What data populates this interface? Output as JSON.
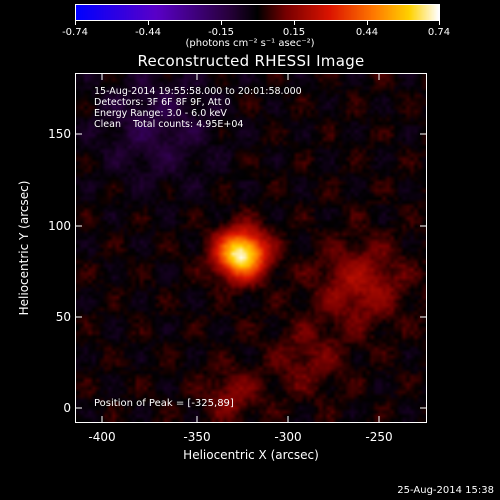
{
  "colorbar": {
    "tick_labels": [
      "-0.74",
      "-0.44",
      "-0.15",
      "0.15",
      "0.44",
      "0.74"
    ],
    "units": "(photons cm⁻² s⁻¹ asec⁻²)"
  },
  "chart_data": {
    "type": "heatmap",
    "title": "Reconstructed RHESSI Image",
    "xlabel": "Heliocentric X (arcsec)",
    "ylabel": "Heliocentric Y (arcsec)",
    "xlim": [
      -413,
      -227
    ],
    "ylim": [
      -5,
      190
    ],
    "xticks": [
      "-400",
      "-350",
      "-300",
      "-250"
    ],
    "yticks": [
      "0",
      "50",
      "100",
      "150"
    ],
    "clim": [
      -0.74,
      0.74
    ],
    "peak": {
      "x": -325,
      "y": 89,
      "value": 0.74
    },
    "sources": [
      {
        "x": -325,
        "y": 89,
        "value": 0.74
      },
      {
        "x": -262,
        "y": 72,
        "value": 0.18
      },
      {
        "x": -290,
        "y": 30,
        "value": 0.1
      },
      {
        "x": -330,
        "y": 10,
        "value": 0.13
      }
    ]
  },
  "info": {
    "line1": "15-Aug-2014 19:55:58.000 to 20:01:58.000",
    "line2": "Detectors: 3F 6F 8F 9F, Att 0",
    "line3": "Energy Range: 3.0 - 6.0 keV",
    "line4": "Clean    Total counts: 4.95E+04",
    "peak_text": "Position of Peak = [-325,89]"
  },
  "footer": {
    "timestamp": "25-Aug-2014 15:38"
  }
}
